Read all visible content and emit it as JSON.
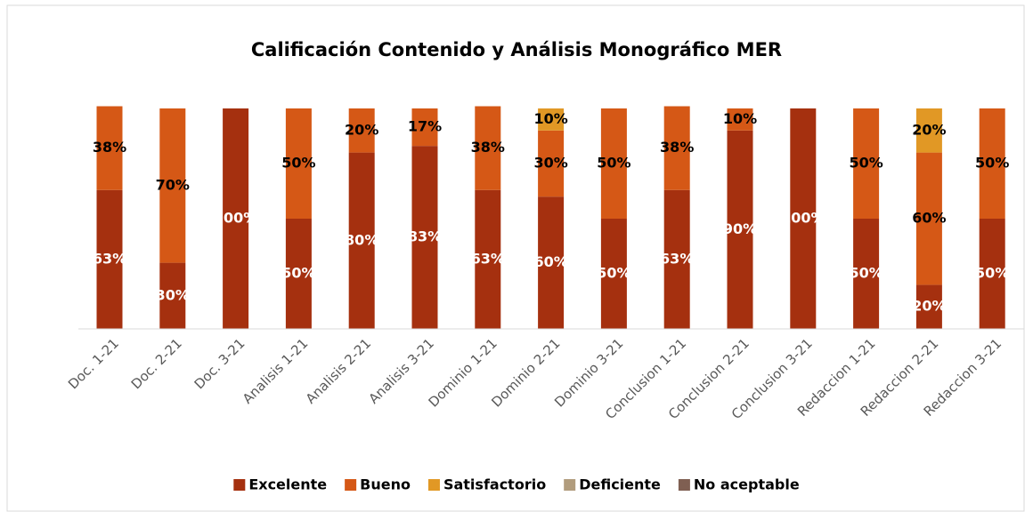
{
  "chart_data": {
    "type": "stacked_bar",
    "title": "Calificación Contenido y Análisis Monográfico MER",
    "categories": [
      "Doc. 1-21",
      "Doc. 2-21",
      "Doc. 3-21",
      "Analisis 1-21",
      "Analisis 2-21",
      "Analisis 3-21",
      "Dominio 1-21",
      "Dominio 2-21",
      "Dominio 3-21",
      "Conclusion 1-21",
      "Conclusion 2-21",
      "Conclusion 3-21",
      "Redaccion 1-21",
      "Redaccion 2-21",
      "Redaccion 3-21"
    ],
    "ylim": [
      0,
      100
    ],
    "legend": "bottom",
    "series": [
      {
        "name": "Excelente",
        "color": "#a5300f",
        "values": [
          63,
          30,
          100,
          50,
          80,
          83,
          63,
          60,
          50,
          63,
          90,
          100,
          50,
          20,
          50
        ],
        "value_labels": [
          "63%",
          "30%",
          "100%",
          "50%",
          "80%",
          "83%",
          "63%",
          "60%",
          "50%",
          "63%",
          "90%",
          "100%",
          "50%",
          "20%",
          "50%"
        ]
      },
      {
        "name": "Bueno",
        "color": "#d55816",
        "values": [
          38,
          70,
          0,
          50,
          20,
          17,
          38,
          30,
          50,
          38,
          10,
          0,
          50,
          60,
          50
        ],
        "value_labels": [
          "38%",
          "70%",
          null,
          "50%",
          "20%",
          "17%",
          "38%",
          "30%",
          "50%",
          "38%",
          "10%",
          null,
          "50%",
          "60%",
          "50%"
        ]
      },
      {
        "name": "Satisfactorio",
        "color": "#e19825",
        "values": [
          0,
          0,
          0,
          0,
          0,
          0,
          0,
          10,
          0,
          0,
          0,
          0,
          0,
          20,
          0
        ],
        "value_labels": [
          null,
          null,
          null,
          null,
          null,
          null,
          null,
          "10%",
          null,
          null,
          null,
          null,
          null,
          "20%",
          null
        ]
      },
      {
        "name": "Deficiente",
        "color": "#b19c7d",
        "values": [
          0,
          0,
          0,
          0,
          0,
          0,
          0,
          0,
          0,
          0,
          0,
          0,
          0,
          0,
          0
        ]
      },
      {
        "name": "No aceptable",
        "color": "#7f5f52",
        "values": [
          0,
          0,
          0,
          0,
          0,
          0,
          0,
          0,
          0,
          0,
          0,
          0,
          0,
          0,
          0
        ]
      }
    ]
  }
}
